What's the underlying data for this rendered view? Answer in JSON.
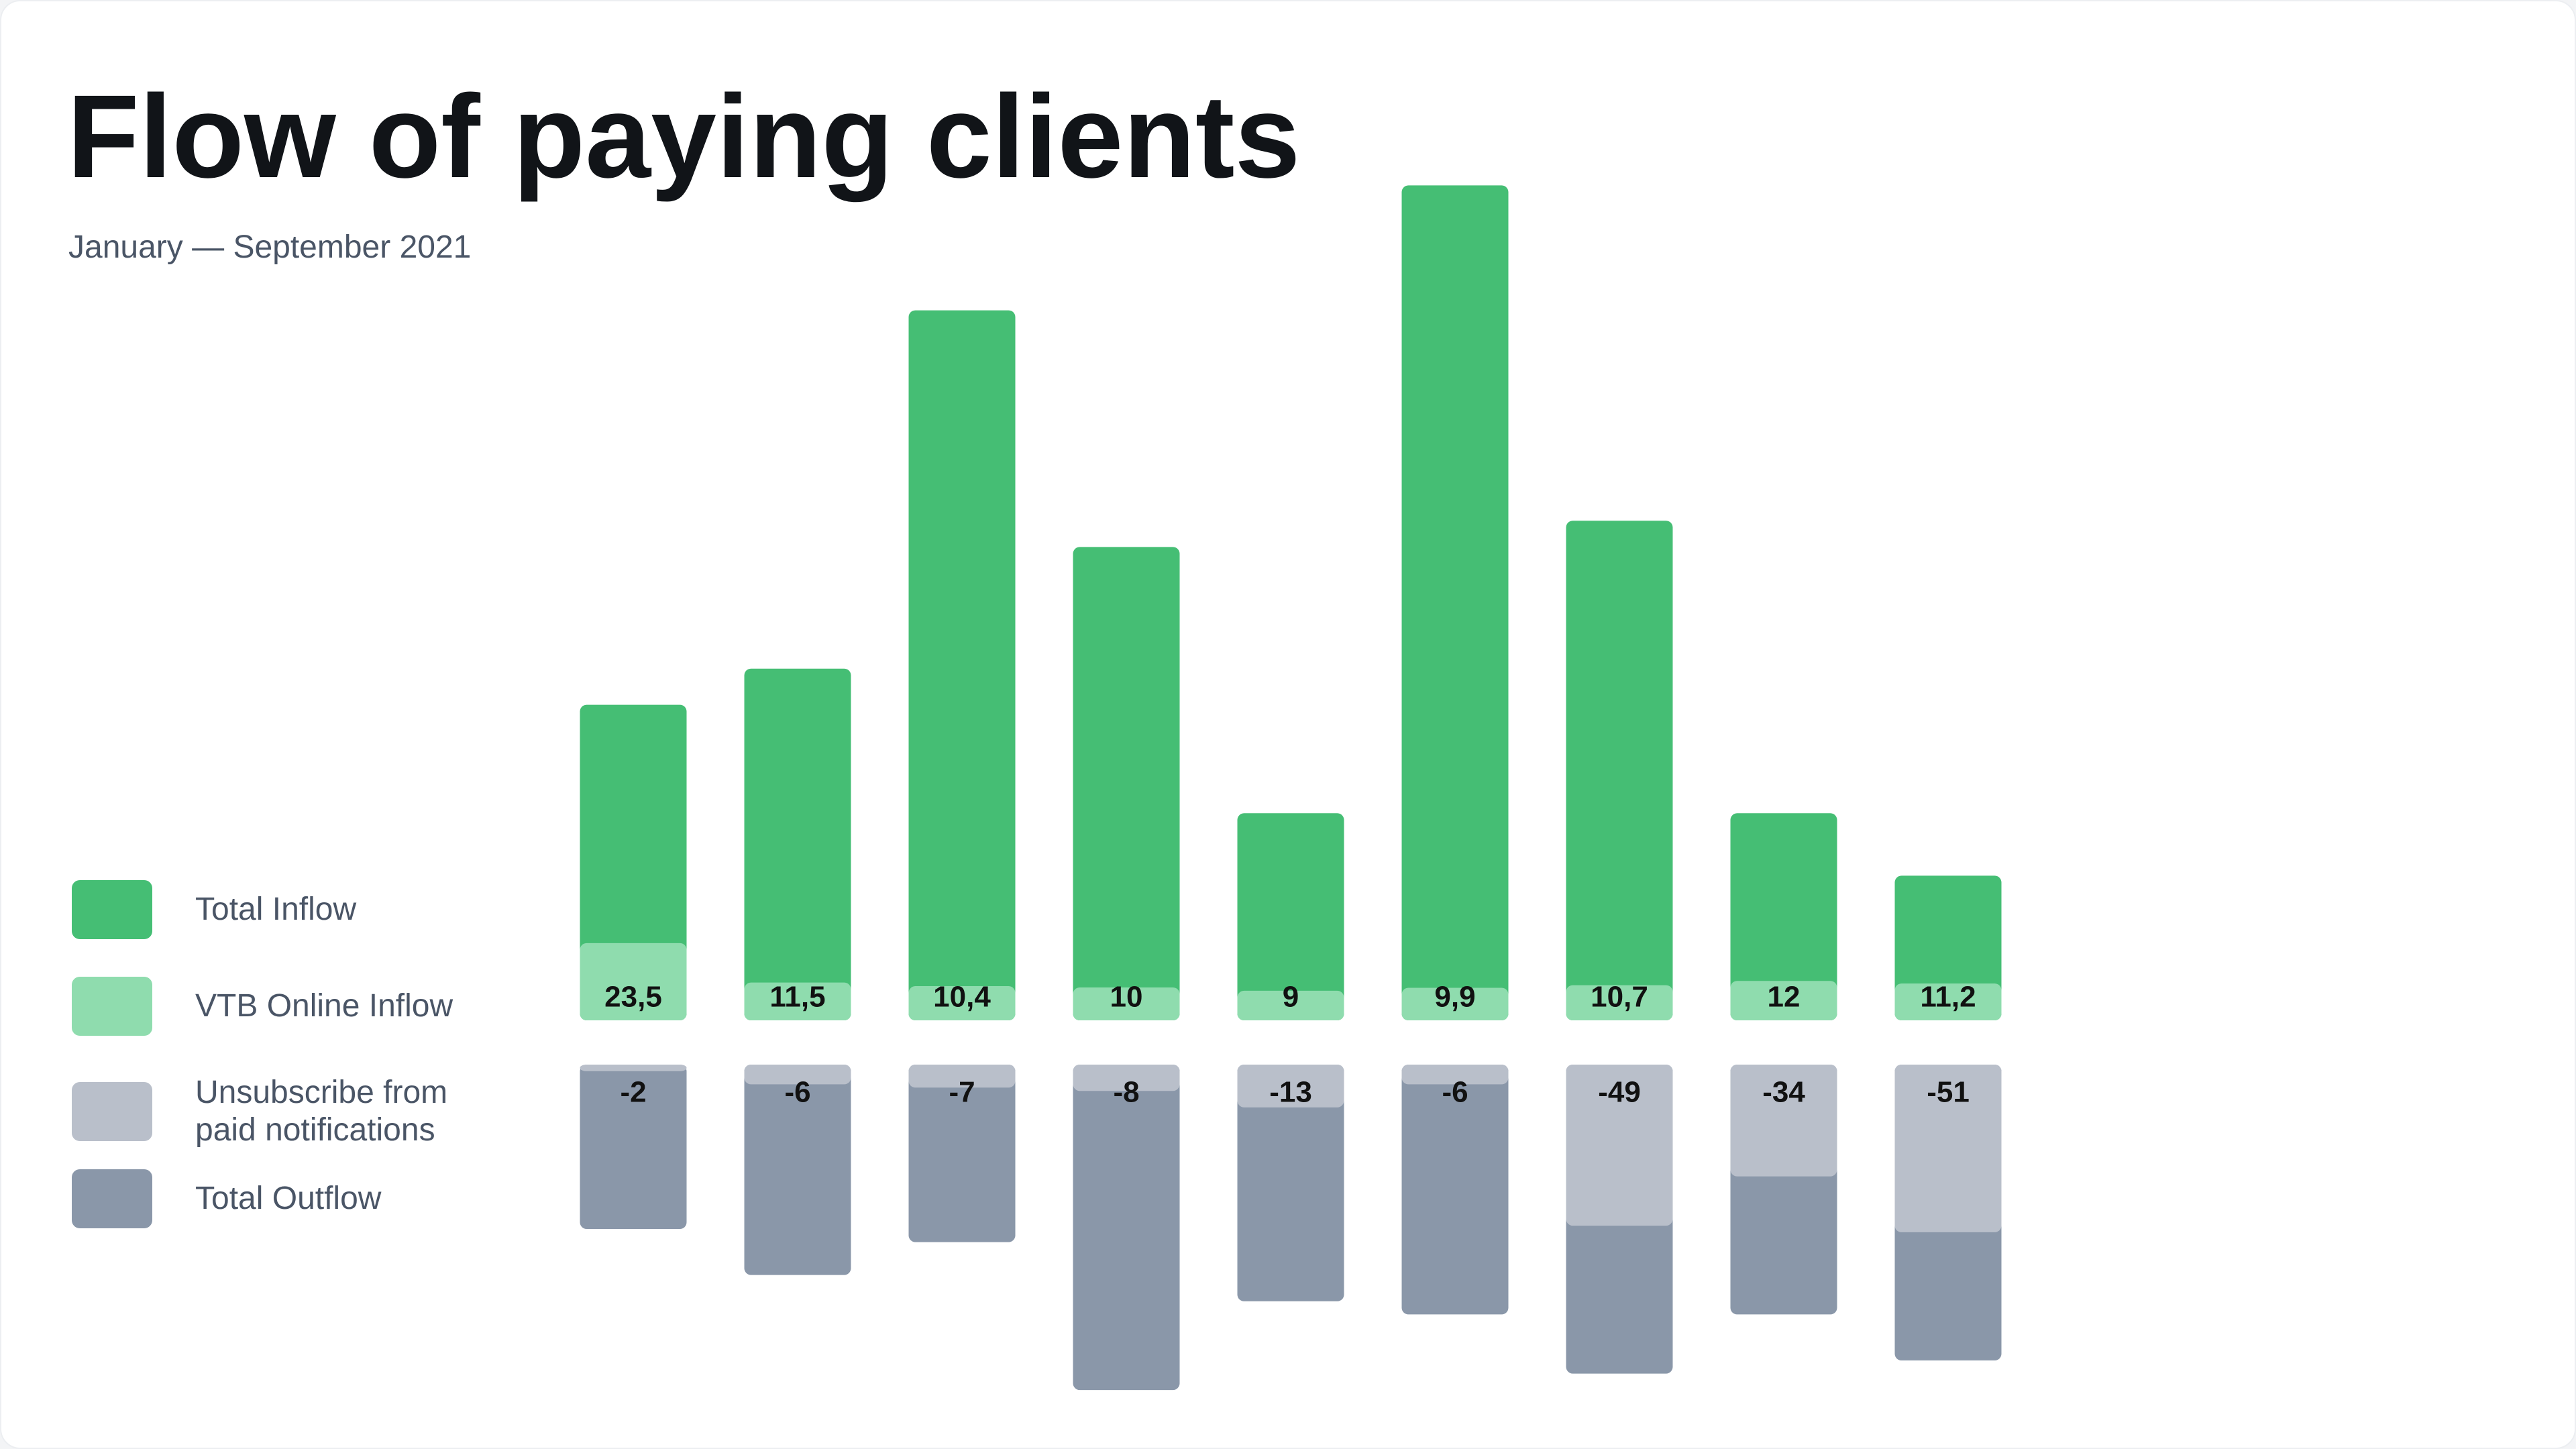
{
  "chart_data": {
    "type": "bar",
    "title": "Flow of paying clients",
    "subtitle": "January — September 2021",
    "categories": [
      null,
      null,
      null,
      null,
      null,
      null,
      null,
      null,
      null
    ],
    "series": [
      {
        "name": "Total Inflow",
        "color": "#45be74",
        "values": [
          96,
          107,
          216,
          144,
          63,
          254,
          152,
          63,
          44
        ]
      },
      {
        "name": "VTB Online Inflow",
        "color": "#8fdcae",
        "values": [
          23.5,
          11.5,
          10.4,
          10,
          9,
          9.9,
          10.7,
          12,
          11.2
        ],
        "value_labels": [
          "23,5",
          "11,5",
          "10,4",
          "10",
          "9",
          "9,9",
          "10,7",
          "12",
          "11,2"
        ]
      },
      {
        "name": "Unsubscribe from paid notifications",
        "color": "#b9bfca",
        "values": [
          -2,
          -6,
          -7,
          -8,
          -13,
          -6,
          -49,
          -34,
          -51
        ]
      },
      {
        "name": "Total Outflow",
        "color": "#8a97a9",
        "values": [
          -50,
          -64,
          -54,
          -99,
          -72,
          -76,
          -94,
          -76,
          -90
        ]
      }
    ]
  }
}
